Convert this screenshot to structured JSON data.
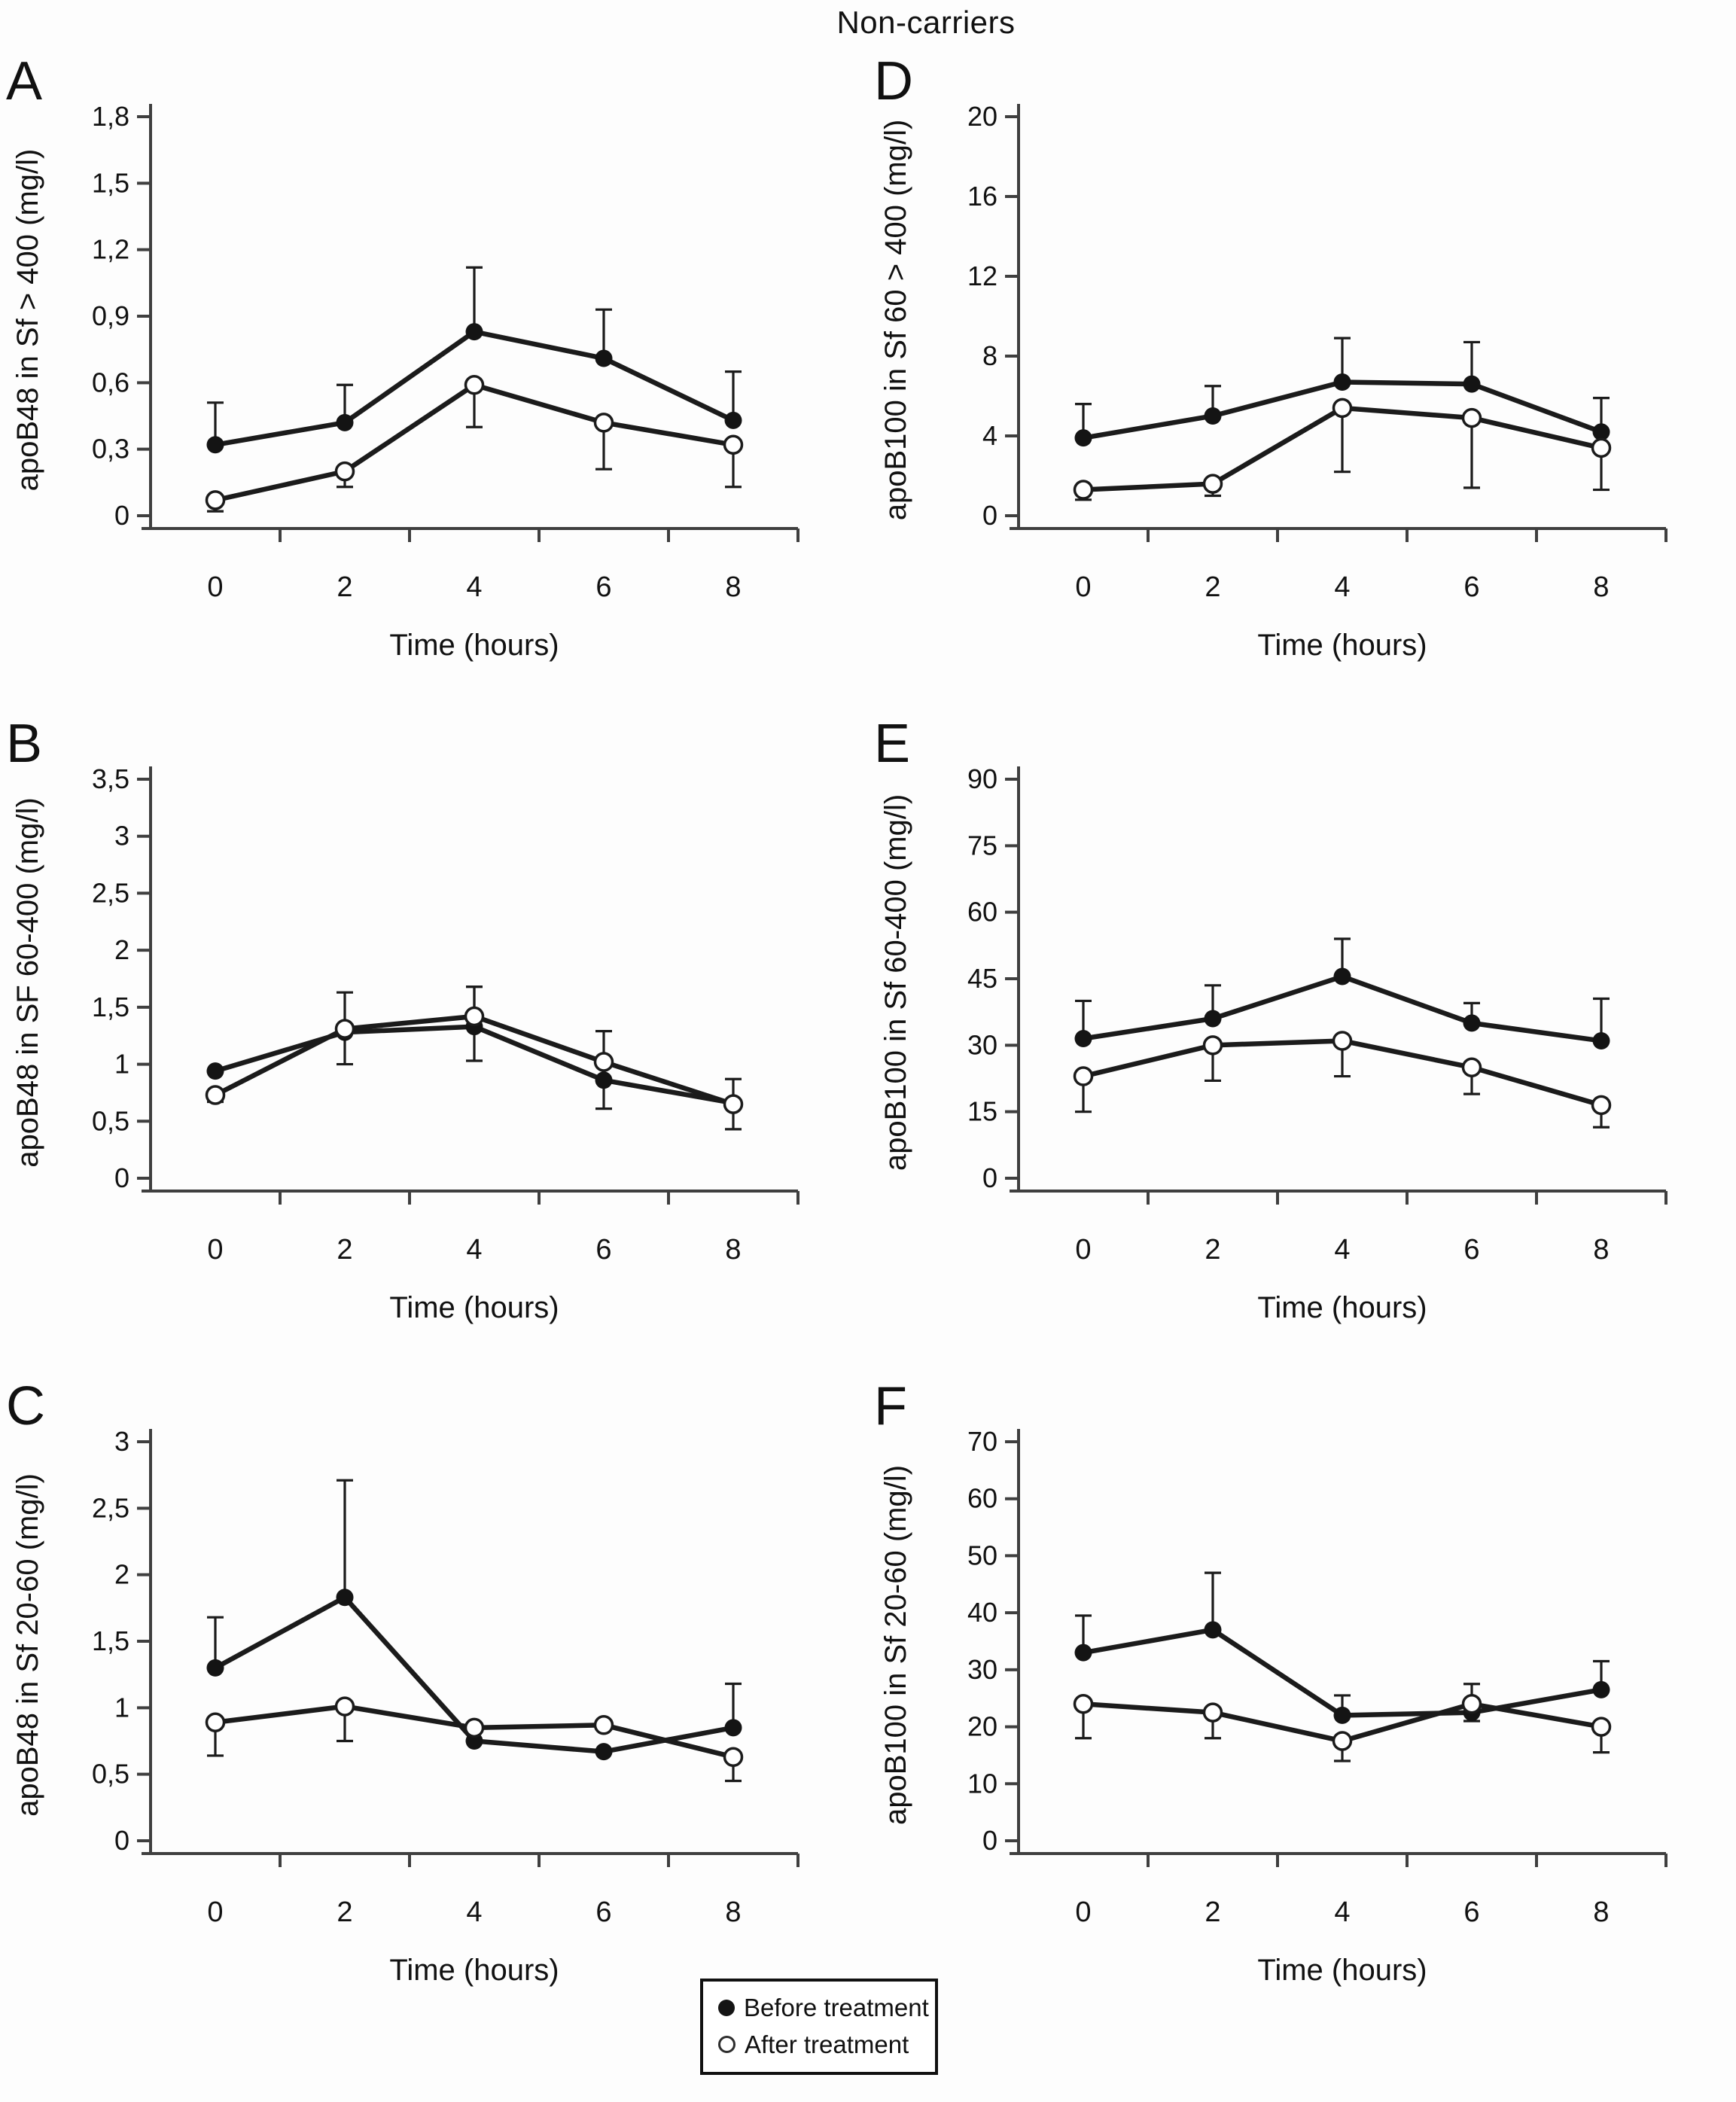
{
  "title": "Non-carriers",
  "legend": {
    "items": [
      {
        "marker": "filled-circle",
        "label": "Before treatment"
      },
      {
        "marker": "open-circle",
        "label": "After treatment"
      }
    ]
  },
  "x_axis": {
    "label": "Time (hours)",
    "tick_labels": [
      "0",
      "2",
      "4",
      "6",
      "8"
    ]
  },
  "colors": {
    "line": "#1b1b1b",
    "axis": "#3f3f3f",
    "marker_fill": "#141414",
    "open_fill": "#ffffff"
  },
  "chart_data": [
    {
      "type": "line",
      "panel": "A",
      "ylabel": "apoB48 in Sf > 400 (mg/l)",
      "xlabel": "Time (hours)",
      "x": [
        0,
        2,
        4,
        6,
        8
      ],
      "ylim": [
        0,
        1.8
      ],
      "yticks": [
        0,
        0.3,
        0.6,
        0.9,
        1.2,
        1.5,
        1.8
      ],
      "ytick_labels": [
        "0",
        "0,3",
        "0,6",
        "0,9",
        "1,2",
        "1,5",
        "1,8"
      ],
      "legend_position": "none",
      "grid": false,
      "series": [
        {
          "name": "Before treatment",
          "marker": "filled",
          "values": [
            0.32,
            0.42,
            0.83,
            0.71,
            0.43
          ],
          "err_up": [
            0.19,
            0.17,
            0.29,
            0.22,
            0.22
          ],
          "err_down": [
            0,
            0,
            0,
            0,
            0
          ]
        },
        {
          "name": "After treatment",
          "marker": "open",
          "values": [
            0.07,
            0.2,
            0.59,
            0.42,
            0.32
          ],
          "err_up": [
            0,
            0,
            0,
            0,
            0
          ],
          "err_down": [
            0.05,
            0.07,
            0.19,
            0.21,
            0.19
          ]
        }
      ]
    },
    {
      "type": "line",
      "panel": "B",
      "ylabel": "apoB48 in SF 60-400 (mg/l)",
      "xlabel": "Time (hours)",
      "x": [
        0,
        2,
        4,
        6,
        8
      ],
      "ylim": [
        0,
        3.5
      ],
      "yticks": [
        0,
        0.5,
        1,
        1.5,
        2,
        2.5,
        3,
        3.5
      ],
      "ytick_labels": [
        "0",
        "0,5",
        "1",
        "1,5",
        "2",
        "2,5",
        "3",
        "3,5"
      ],
      "legend_position": "none",
      "grid": false,
      "series": [
        {
          "name": "Before treatment",
          "marker": "filled",
          "values": [
            0.94,
            1.28,
            1.33,
            0.86,
            0.66
          ],
          "err_up": [
            0,
            0,
            0.35,
            0,
            0
          ],
          "err_down": [
            0,
            0.28,
            0.3,
            0.25,
            0
          ]
        },
        {
          "name": "After treatment",
          "marker": "open",
          "values": [
            0.73,
            1.31,
            1.42,
            1.02,
            0.65
          ],
          "err_up": [
            0,
            0.32,
            0.26,
            0.27,
            0.22
          ],
          "err_down": [
            0.06,
            0,
            0,
            0,
            0.22
          ]
        }
      ]
    },
    {
      "type": "line",
      "panel": "C",
      "ylabel": "apoB48 in Sf 20-60 (mg/l)",
      "xlabel": "Time (hours)",
      "x": [
        0,
        2,
        4,
        6,
        8
      ],
      "ylim": [
        0,
        3
      ],
      "yticks": [
        0,
        0.5,
        1,
        1.5,
        2,
        2.5,
        3
      ],
      "ytick_labels": [
        "0",
        "0,5",
        "1",
        "1,5",
        "2",
        "2,5",
        "3"
      ],
      "legend_position": "none",
      "grid": false,
      "series": [
        {
          "name": "Before treatment",
          "marker": "filled",
          "values": [
            1.3,
            1.83,
            0.75,
            0.67,
            0.85
          ],
          "err_up": [
            0.38,
            0.88,
            0,
            0,
            0.33
          ],
          "err_down": [
            0,
            0,
            0,
            0,
            0
          ]
        },
        {
          "name": "After treatment",
          "marker": "open",
          "values": [
            0.89,
            1.01,
            0.85,
            0.87,
            0.63
          ],
          "err_up": [
            0,
            0,
            0,
            0,
            0
          ],
          "err_down": [
            0.25,
            0.26,
            0,
            0,
            0.18
          ]
        }
      ]
    },
    {
      "type": "line",
      "panel": "D",
      "ylabel": "apoB100 in Sf 60 > 400 (mg/l)",
      "xlabel": "Time (hours)",
      "x": [
        0,
        2,
        4,
        6,
        8
      ],
      "ylim": [
        0,
        20
      ],
      "yticks": [
        0,
        4,
        8,
        12,
        16,
        20
      ],
      "ytick_labels": [
        "0",
        "4",
        "8",
        "12",
        "16",
        "20"
      ],
      "legend_position": "none",
      "grid": false,
      "series": [
        {
          "name": "Before treatment",
          "marker": "filled",
          "values": [
            3.9,
            5,
            6.7,
            6.6,
            4.2
          ],
          "err_up": [
            1.7,
            1.5,
            2.2,
            2.1,
            1.7
          ],
          "err_down": [
            0,
            0,
            0,
            0,
            0
          ]
        },
        {
          "name": "After treatment",
          "marker": "open",
          "values": [
            1.3,
            1.6,
            5.4,
            4.9,
            3.4
          ],
          "err_up": [
            0,
            0,
            0,
            0,
            0
          ],
          "err_down": [
            0.5,
            0.6,
            3.2,
            3.5,
            2.1
          ]
        }
      ]
    },
    {
      "type": "line",
      "panel": "E",
      "ylabel": "apoB100 in Sf 60-400 (mg/l)",
      "xlabel": "Time (hours)",
      "x": [
        0,
        2,
        4,
        6,
        8
      ],
      "ylim": [
        0,
        90
      ],
      "yticks": [
        0,
        15,
        30,
        45,
        60,
        75,
        90
      ],
      "ytick_labels": [
        "0",
        "15",
        "30",
        "45",
        "60",
        "75",
        "90"
      ],
      "legend_position": "none",
      "grid": false,
      "series": [
        {
          "name": "Before treatment",
          "marker": "filled",
          "values": [
            31.5,
            36,
            45.5,
            35,
            31
          ],
          "err_up": [
            8.5,
            7.5,
            8.5,
            4.5,
            9.5
          ],
          "err_down": [
            0,
            0,
            0,
            0,
            0
          ]
        },
        {
          "name": "After treatment",
          "marker": "open",
          "values": [
            23,
            30,
            31,
            25,
            16.5
          ],
          "err_up": [
            0,
            0,
            0,
            0,
            0
          ],
          "err_down": [
            8,
            8,
            8,
            6,
            5
          ]
        }
      ]
    },
    {
      "type": "line",
      "panel": "F",
      "ylabel": "apoB100 in Sf 20-60 (mg/l)",
      "xlabel": "Time (hours)",
      "x": [
        0,
        2,
        4,
        6,
        8
      ],
      "ylim": [
        0,
        70
      ],
      "yticks": [
        0,
        10,
        20,
        30,
        40,
        50,
        60,
        70
      ],
      "ytick_labels": [
        "0",
        "10",
        "20",
        "30",
        "40",
        "50",
        "60",
        "70"
      ],
      "legend_position": "none",
      "grid": false,
      "series": [
        {
          "name": "Before treatment",
          "marker": "filled",
          "values": [
            33,
            37,
            22,
            22.5,
            26.5
          ],
          "err_up": [
            6.5,
            10,
            3.5,
            1.5,
            5
          ],
          "err_down": [
            0,
            0,
            0,
            1.5,
            0
          ]
        },
        {
          "name": "After treatment",
          "marker": "open",
          "values": [
            24,
            22.5,
            17.5,
            24,
            20
          ],
          "err_up": [
            0,
            0,
            0,
            3.5,
            0
          ],
          "err_down": [
            6,
            4.5,
            3.5,
            0,
            4.5
          ]
        }
      ]
    }
  ]
}
